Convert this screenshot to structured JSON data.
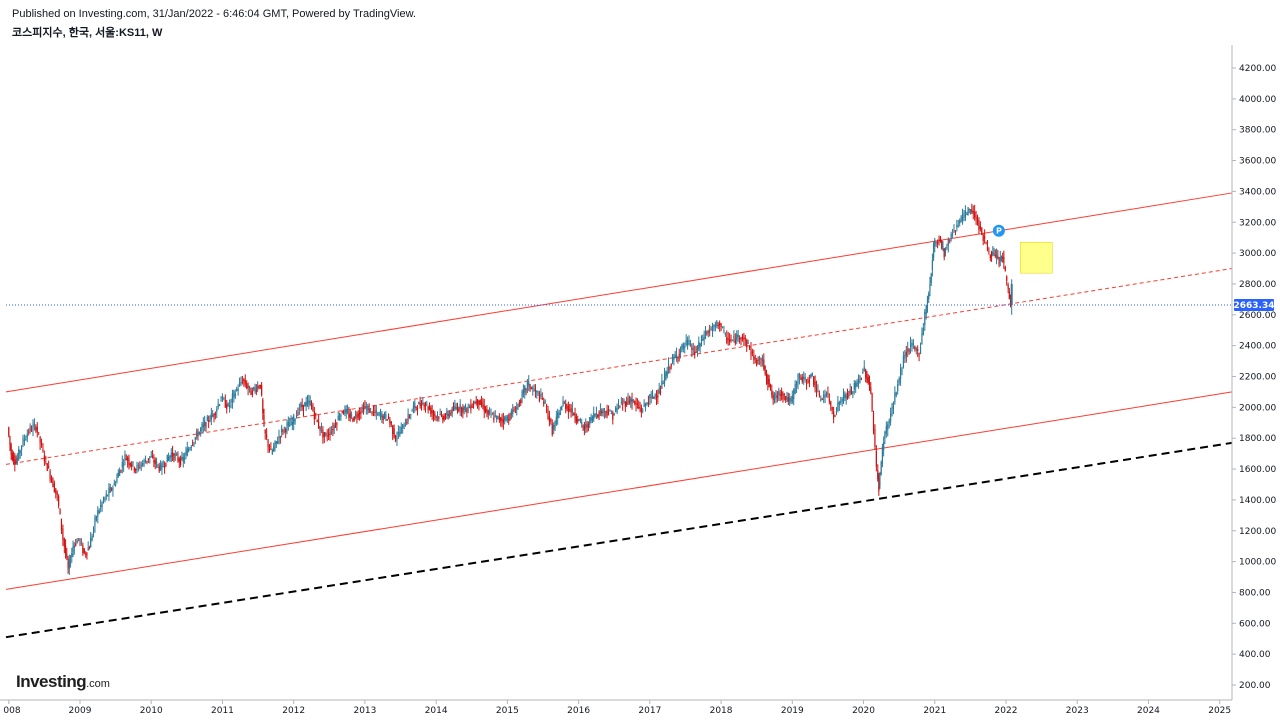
{
  "header": {
    "published": "Published on Investing.com, 31/Jan/2022 - 6:46:04 GMT, Powered by TradingView.",
    "symbol": "코스피지수, 한국, 서울:KS11, W"
  },
  "logo": {
    "name": "Investing",
    "suffix": ".com"
  },
  "colors": {
    "channel": "#ff3b30",
    "support": "#000000",
    "price_line": "#2962ff",
    "bull": "#2a7a9b",
    "bear": "#d01010",
    "highlight": "#ffff66",
    "marker": "#2196f3"
  },
  "chart_data": {
    "type": "candlestick",
    "x_axis": {
      "range": [
        "2008-01",
        "2025-03"
      ],
      "tick_labels": [
        "008",
        "2009",
        "2010",
        "2011",
        "2012",
        "2013",
        "2014",
        "2015",
        "2016",
        "2017",
        "2018",
        "2019",
        "2020",
        "2021",
        "2022",
        "2023",
        "2024",
        "2025"
      ]
    },
    "y_axis": {
      "range": [
        150,
        4350
      ],
      "position": "right",
      "tick_labels": [
        "200.00",
        "400.00",
        "600.00",
        "800.00",
        "1000.00",
        "1200.00",
        "1400.00",
        "1600.00",
        "1800.00",
        "2000.00",
        "2200.00",
        "2400.00",
        "2600.00",
        "2800.00",
        "3000.00",
        "3200.00",
        "3400.00",
        "3600.00",
        "3800.00",
        "4000.00",
        "4200.00"
      ]
    },
    "current_price": {
      "value": 2663.34,
      "label": "2663.34"
    },
    "price_path": [
      [
        2008.0,
        1870
      ],
      [
        2008.05,
        1700
      ],
      [
        2008.12,
        1640
      ],
      [
        2008.2,
        1760
      ],
      [
        2008.3,
        1850
      ],
      [
        2008.4,
        1880
      ],
      [
        2008.5,
        1700
      ],
      [
        2008.6,
        1560
      ],
      [
        2008.7,
        1420
      ],
      [
        2008.78,
        1150
      ],
      [
        2008.85,
        950
      ],
      [
        2008.92,
        1100
      ],
      [
        2009.0,
        1150
      ],
      [
        2009.08,
        1050
      ],
      [
        2009.15,
        1100
      ],
      [
        2009.25,
        1300
      ],
      [
        2009.35,
        1400
      ],
      [
        2009.5,
        1500
      ],
      [
        2009.65,
        1680
      ],
      [
        2009.8,
        1600
      ],
      [
        2010.0,
        1680
      ],
      [
        2010.15,
        1600
      ],
      [
        2010.3,
        1700
      ],
      [
        2010.45,
        1650
      ],
      [
        2010.6,
        1780
      ],
      [
        2010.75,
        1880
      ],
      [
        2010.9,
        1960
      ],
      [
        2011.0,
        2060
      ],
      [
        2011.1,
        2000
      ],
      [
        2011.2,
        2100
      ],
      [
        2011.3,
        2180
      ],
      [
        2011.42,
        2100
      ],
      [
        2011.55,
        2150
      ],
      [
        2011.6,
        1850
      ],
      [
        2011.7,
        1700
      ],
      [
        2011.85,
        1850
      ],
      [
        2012.0,
        1900
      ],
      [
        2012.1,
        2000
      ],
      [
        2012.25,
        2030
      ],
      [
        2012.35,
        1900
      ],
      [
        2012.45,
        1810
      ],
      [
        2012.55,
        1850
      ],
      [
        2012.7,
        1980
      ],
      [
        2012.85,
        1930
      ],
      [
        2013.0,
        2000
      ],
      [
        2013.1,
        1980
      ],
      [
        2013.2,
        1950
      ],
      [
        2013.35,
        1930
      ],
      [
        2013.45,
        1800
      ],
      [
        2013.55,
        1870
      ],
      [
        2013.7,
        2000
      ],
      [
        2013.85,
        2030
      ],
      [
        2014.0,
        1950
      ],
      [
        2014.15,
        1940
      ],
      [
        2014.3,
        2000
      ],
      [
        2014.45,
        1990
      ],
      [
        2014.6,
        2050
      ],
      [
        2014.75,
        1960
      ],
      [
        2014.85,
        1930
      ],
      [
        2015.0,
        1920
      ],
      [
        2015.15,
        2000
      ],
      [
        2015.3,
        2150
      ],
      [
        2015.45,
        2080
      ],
      [
        2015.55,
        2020
      ],
      [
        2015.65,
        1850
      ],
      [
        2015.8,
        2030
      ],
      [
        2015.95,
        1960
      ],
      [
        2016.1,
        1860
      ],
      [
        2016.25,
        1960
      ],
      [
        2016.4,
        1980
      ],
      [
        2016.5,
        1950
      ],
      [
        2016.6,
        2020
      ],
      [
        2016.75,
        2050
      ],
      [
        2016.9,
        1980
      ],
      [
        2017.0,
        2050
      ],
      [
        2017.15,
        2100
      ],
      [
        2017.3,
        2280
      ],
      [
        2017.45,
        2370
      ],
      [
        2017.55,
        2420
      ],
      [
        2017.65,
        2350
      ],
      [
        2017.8,
        2480
      ],
      [
        2017.9,
        2510
      ],
      [
        2018.0,
        2550
      ],
      [
        2018.08,
        2450
      ],
      [
        2018.18,
        2430
      ],
      [
        2018.3,
        2470
      ],
      [
        2018.4,
        2400
      ],
      [
        2018.5,
        2300
      ],
      [
        2018.6,
        2300
      ],
      [
        2018.75,
        2050
      ],
      [
        2018.85,
        2100
      ],
      [
        2019.0,
        2030
      ],
      [
        2019.1,
        2200
      ],
      [
        2019.2,
        2170
      ],
      [
        2019.3,
        2200
      ],
      [
        2019.4,
        2050
      ],
      [
        2019.5,
        2090
      ],
      [
        2019.6,
        1950
      ],
      [
        2019.7,
        2050
      ],
      [
        2019.85,
        2100
      ],
      [
        2019.95,
        2170
      ],
      [
        2020.03,
        2250
      ],
      [
        2020.12,
        2100
      ],
      [
        2020.2,
        1600
      ],
      [
        2020.23,
        1480
      ],
      [
        2020.3,
        1800
      ],
      [
        2020.4,
        1950
      ],
      [
        2020.5,
        2150
      ],
      [
        2020.6,
        2350
      ],
      [
        2020.7,
        2400
      ],
      [
        2020.8,
        2350
      ],
      [
        2020.88,
        2600
      ],
      [
        2020.95,
        2800
      ],
      [
        2021.0,
        3050
      ],
      [
        2021.08,
        3100
      ],
      [
        2021.15,
        3000
      ],
      [
        2021.25,
        3120
      ],
      [
        2021.35,
        3200
      ],
      [
        2021.45,
        3250
      ],
      [
        2021.52,
        3290
      ],
      [
        2021.6,
        3230
      ],
      [
        2021.7,
        3100
      ],
      [
        2021.78,
        3000
      ],
      [
        2021.85,
        2980
      ],
      [
        2021.92,
        2950
      ],
      [
        2021.97,
        2980
      ],
      [
        2022.03,
        2800
      ],
      [
        2022.08,
        2663
      ]
    ],
    "annotations": [
      {
        "type": "channel-line",
        "label": "upper",
        "from": [
          2008.0,
          2100
        ],
        "to": [
          2025.2,
          3390
        ]
      },
      {
        "type": "channel-line",
        "label": "mid",
        "style": "dashed",
        "from": [
          2008.0,
          1630
        ],
        "to": [
          2025.2,
          2900
        ]
      },
      {
        "type": "channel-line",
        "label": "lower",
        "from": [
          2008.0,
          820
        ],
        "to": [
          2025.2,
          2100
        ]
      },
      {
        "type": "trend-line",
        "style": "dashed",
        "from": [
          2008.0,
          510
        ],
        "to": [
          2025.2,
          1770
        ]
      },
      {
        "type": "highlight-box",
        "from": [
          2022.2,
          2870
        ],
        "to": [
          2022.65,
          3070
        ]
      },
      {
        "type": "marker",
        "label": "P",
        "at": [
          2021.9,
          3145
        ]
      }
    ]
  }
}
